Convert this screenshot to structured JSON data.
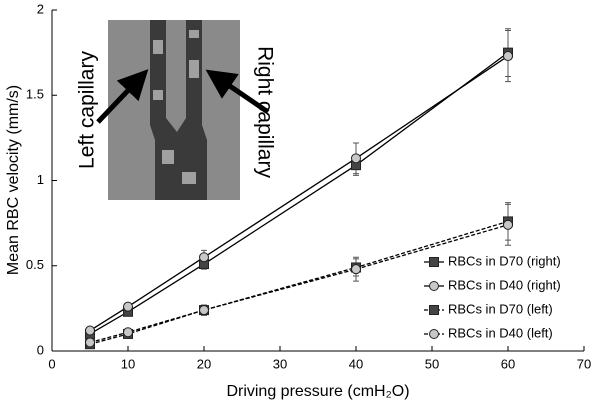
{
  "chart_data": {
    "type": "line",
    "x_label": "Driving pressure (cmH₂O)",
    "y_label": "Mean RBC velocity (mm/s)",
    "annotations": [
      "Left capillary",
      "Right capillary"
    ],
    "x": [
      5,
      10,
      20,
      40,
      60
    ],
    "series": [
      {
        "name": "RBCs in D70 (right)",
        "color": "#444444",
        "marker": "square",
        "dashed": false,
        "values": [
          0.1,
          0.23,
          0.51,
          1.09,
          1.75
        ],
        "errors": [
          0.01,
          0.02,
          0.03,
          0.06,
          0.14
        ]
      },
      {
        "name": "RBCs in D40 (right)",
        "color": "#c8c8c8",
        "marker": "circle",
        "dashed": false,
        "values": [
          0.12,
          0.26,
          0.55,
          1.13,
          1.73
        ],
        "errors": [
          0.01,
          0.02,
          0.04,
          0.09,
          0.15
        ]
      },
      {
        "name": "RBCs in D70 (left)",
        "color": "#444444",
        "marker": "square",
        "dashed": true,
        "values": [
          0.04,
          0.1,
          0.24,
          0.49,
          0.76
        ],
        "errors": [
          0.01,
          0.01,
          0.03,
          0.05,
          0.11
        ]
      },
      {
        "name": "RBCs in D40 (left)",
        "color": "#c8c8c8",
        "marker": "circle",
        "dashed": true,
        "values": [
          0.05,
          0.11,
          0.24,
          0.48,
          0.74
        ],
        "errors": [
          0.01,
          0.01,
          0.03,
          0.07,
          0.12
        ]
      }
    ],
    "xlim": [
      0,
      70
    ],
    "xticks": [
      0,
      10,
      20,
      30,
      40,
      50,
      60,
      70
    ],
    "ylim": [
      0,
      2
    ],
    "yticks": [
      0,
      0.5,
      1,
      1.5,
      2
    ],
    "legend": "lower right",
    "grid": false
  }
}
